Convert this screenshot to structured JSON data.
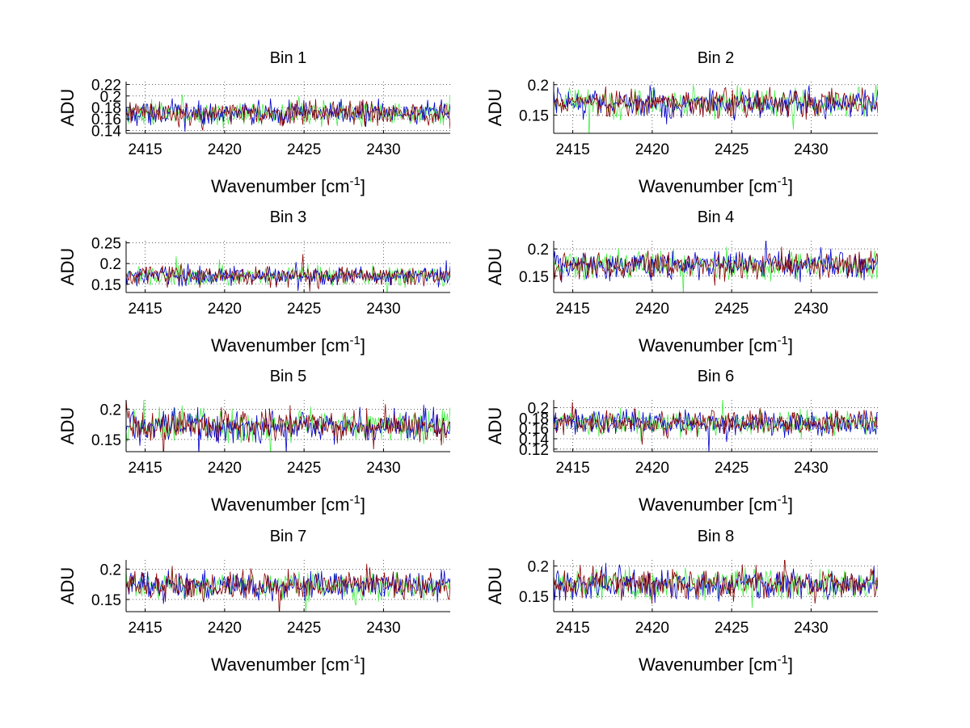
{
  "figure": {
    "background": "#ffffff"
  },
  "series_colors": [
    "#0000cc",
    "#44ee44",
    "#8b0000"
  ],
  "chart_data": [
    {
      "type": "line",
      "title": "Bin 1",
      "xlabel": "Wavenumber [cm",
      "xlabel_sup": "-1",
      "xlabel_end": "]",
      "ylabel": "ADU",
      "xlim": [
        2413.8,
        2434.2
      ],
      "ylim": [
        0.135,
        0.225
      ],
      "xticks": [
        2415,
        2420,
        2425,
        2430
      ],
      "yticks": [
        0.14,
        0.16,
        0.18,
        0.2,
        0.22
      ],
      "series_mean": 0.17,
      "series_noise": 0.022,
      "grid": "dotted"
    },
    {
      "type": "line",
      "title": "Bin 2",
      "xlabel": "Wavenumber [cm",
      "xlabel_sup": "-1",
      "xlabel_end": "]",
      "ylabel": "ADU",
      "xlim": [
        2413.8,
        2434.2
      ],
      "ylim": [
        0.12,
        0.205
      ],
      "xticks": [
        2415,
        2420,
        2425,
        2430
      ],
      "yticks": [
        0.15,
        0.2
      ],
      "series_mean": 0.17,
      "series_noise": 0.025,
      "grid": "dotted"
    },
    {
      "type": "line",
      "title": "Bin 3",
      "xlabel": "Wavenumber [cm",
      "xlabel_sup": "-1",
      "xlabel_end": "]",
      "ylabel": "ADU",
      "xlim": [
        2413.8,
        2434.2
      ],
      "ylim": [
        0.13,
        0.255
      ],
      "xticks": [
        2415,
        2420,
        2425,
        2430
      ],
      "yticks": [
        0.15,
        0.2,
        0.25
      ],
      "series_mean": 0.17,
      "series_noise": 0.025,
      "grid": "dotted"
    },
    {
      "type": "line",
      "title": "Bin 4",
      "xlabel": "Wavenumber [cm",
      "xlabel_sup": "-1",
      "xlabel_end": "]",
      "ylabel": "ADU",
      "xlim": [
        2413.8,
        2434.2
      ],
      "ylim": [
        0.12,
        0.215
      ],
      "xticks": [
        2415,
        2420,
        2425,
        2430
      ],
      "yticks": [
        0.15,
        0.2
      ],
      "series_mean": 0.17,
      "series_noise": 0.028,
      "grid": "dotted"
    },
    {
      "type": "line",
      "title": "Bin 5",
      "xlabel": "Wavenumber [cm",
      "xlabel_sup": "-1",
      "xlabel_end": "]",
      "ylabel": "ADU",
      "xlim": [
        2413.8,
        2434.2
      ],
      "ylim": [
        0.13,
        0.215
      ],
      "xticks": [
        2415,
        2420,
        2425,
        2430
      ],
      "yticks": [
        0.15,
        0.2
      ],
      "series_mean": 0.172,
      "series_noise": 0.028,
      "grid": "dotted"
    },
    {
      "type": "line",
      "title": "Bin 6",
      "xlabel": "Wavenumber [cm",
      "xlabel_sup": "-1",
      "xlabel_end": "]",
      "ylabel": "ADU",
      "xlim": [
        2413.8,
        2434.2
      ],
      "ylim": [
        0.115,
        0.215
      ],
      "xticks": [
        2415,
        2420,
        2425,
        2430
      ],
      "yticks": [
        0.12,
        0.14,
        0.16,
        0.18,
        0.2
      ],
      "series_mean": 0.17,
      "series_noise": 0.025,
      "grid": "dotted"
    },
    {
      "type": "line",
      "title": "Bin 7",
      "xlabel": "Wavenumber [cm",
      "xlabel_sup": "-1",
      "xlabel_end": "]",
      "ylabel": "ADU",
      "xlim": [
        2413.8,
        2434.2
      ],
      "ylim": [
        0.13,
        0.215
      ],
      "xticks": [
        2415,
        2420,
        2425,
        2430
      ],
      "yticks": [
        0.15,
        0.2
      ],
      "series_mean": 0.172,
      "series_noise": 0.025,
      "grid": "dotted"
    },
    {
      "type": "line",
      "title": "Bin 8",
      "xlabel": "Wavenumber [cm",
      "xlabel_sup": "-1",
      "xlabel_end": "]",
      "ylabel": "ADU",
      "xlim": [
        2413.8,
        2434.2
      ],
      "ylim": [
        0.125,
        0.21
      ],
      "xticks": [
        2415,
        2420,
        2425,
        2430
      ],
      "yticks": [
        0.15,
        0.2
      ],
      "series_mean": 0.17,
      "series_noise": 0.028,
      "grid": "dotted"
    }
  ]
}
